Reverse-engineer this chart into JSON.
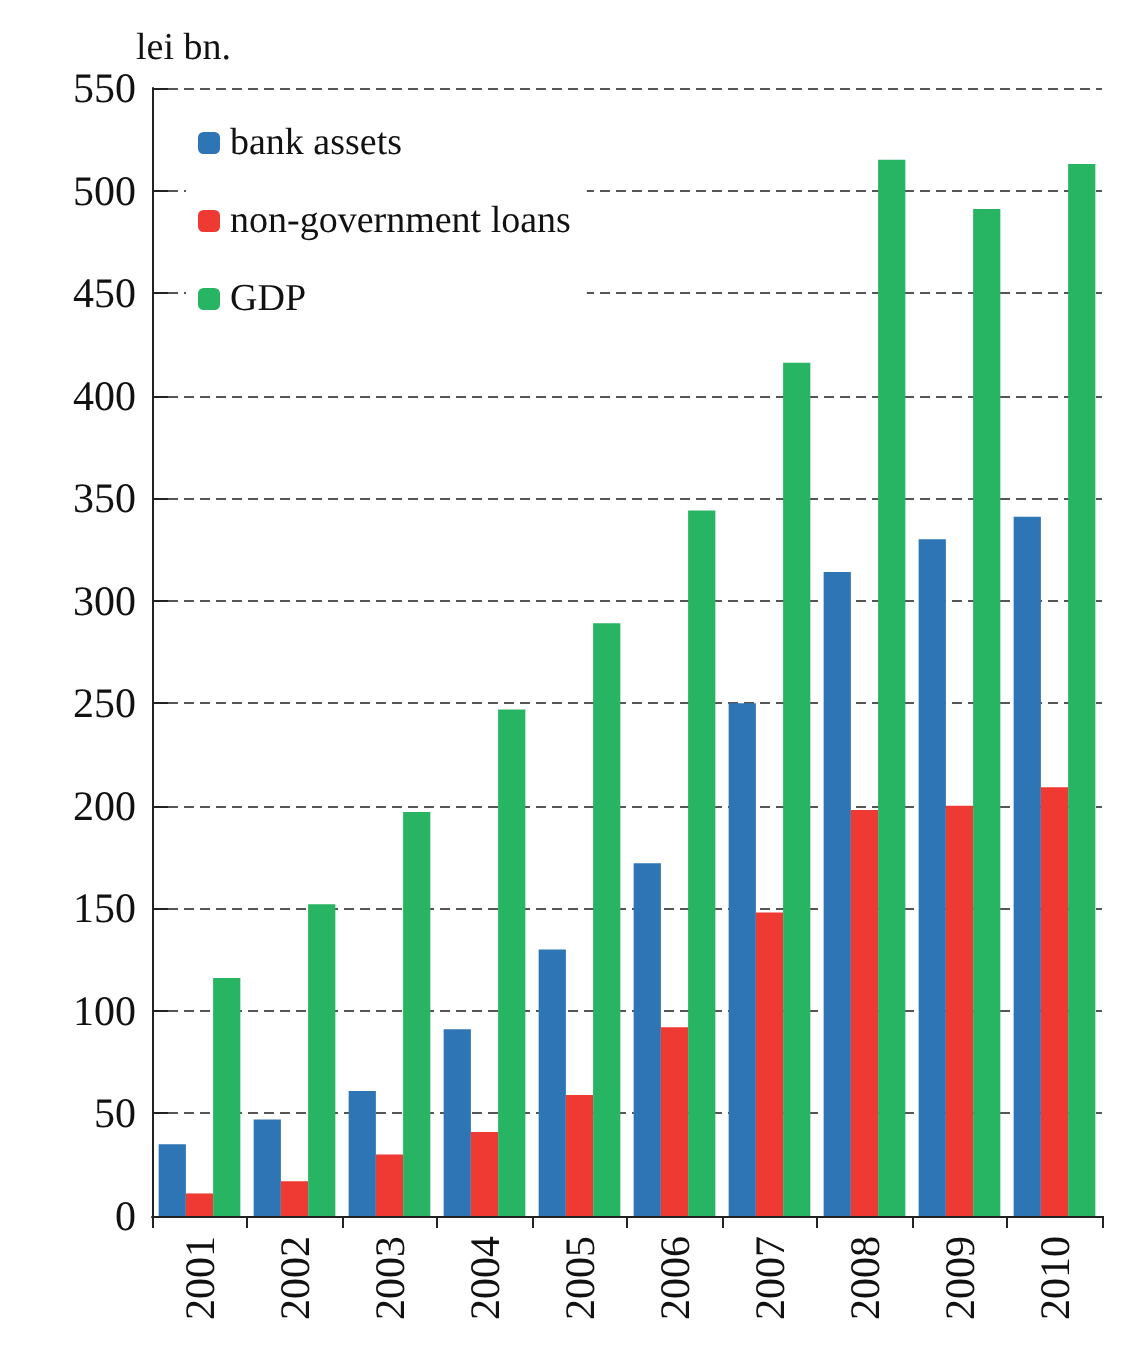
{
  "chart_data": {
    "type": "bar",
    "ylabel": "lei bn.",
    "categories": [
      "2001",
      "2002",
      "2003",
      "2004",
      "2005",
      "2006",
      "2007",
      "2008",
      "2009",
      "2010"
    ],
    "series": [
      {
        "name": "bank assets",
        "color": "#2e75b6",
        "values": [
          35,
          47,
          61,
          91,
          130,
          172,
          250,
          314,
          330,
          341
        ]
      },
      {
        "name": "non-government loans",
        "color": "#ee3a32",
        "values": [
          11,
          17,
          30,
          41,
          59,
          92,
          148,
          198,
          200,
          209
        ]
      },
      {
        "name": "GDP",
        "color": "#27b463",
        "values": [
          116,
          152,
          197,
          247,
          289,
          344,
          416,
          515,
          491,
          513
        ]
      }
    ],
    "ylim": [
      0,
      550
    ],
    "yticks": [
      0,
      50,
      100,
      150,
      200,
      250,
      300,
      350,
      400,
      450,
      500,
      550
    ],
    "grid": "y",
    "legend": "top left"
  }
}
